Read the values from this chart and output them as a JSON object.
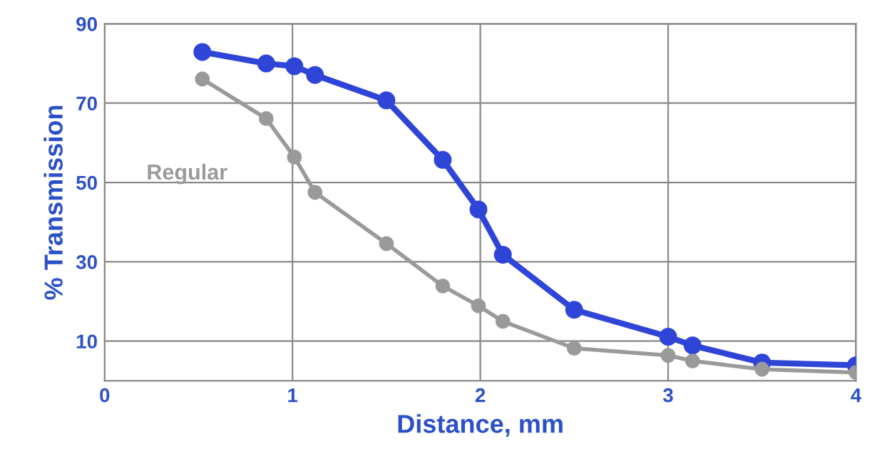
{
  "chart_data": {
    "type": "line",
    "xlabel": "Distance, mm",
    "ylabel": "% Transmission",
    "xlim": [
      0,
      4
    ],
    "xticks": [
      0,
      1,
      2,
      3,
      4
    ],
    "ylim": [
      0,
      90
    ],
    "yticks": [
      10,
      30,
      50,
      70,
      90
    ],
    "grid": true,
    "marker": "circle",
    "line_style": "solid",
    "legend": false,
    "series": [
      {
        "color": "#2f45d8",
        "x": [
          0.52,
          0.86,
          1.01,
          1.12,
          1.5,
          1.8,
          1.99,
          2.12,
          2.5,
          3.0,
          3.13,
          3.5,
          4.0
        ],
        "values": [
          82.9,
          80.0,
          79.3,
          77.1,
          70.7,
          55.7,
          43.2,
          31.8,
          17.9,
          11.1,
          8.9,
          4.6,
          3.9
        ]
      },
      {
        "name": "Regular",
        "color": "#9a9a9a",
        "x": [
          0.52,
          0.86,
          1.01,
          1.12,
          1.5,
          1.8,
          1.99,
          2.12,
          2.5,
          3.0,
          3.13,
          3.5,
          4.0
        ],
        "values": [
          76.1,
          66.1,
          56.4,
          47.5,
          34.6,
          23.9,
          18.9,
          15.0,
          8.2,
          6.4,
          5.0,
          2.9,
          2.1
        ]
      }
    ]
  }
}
